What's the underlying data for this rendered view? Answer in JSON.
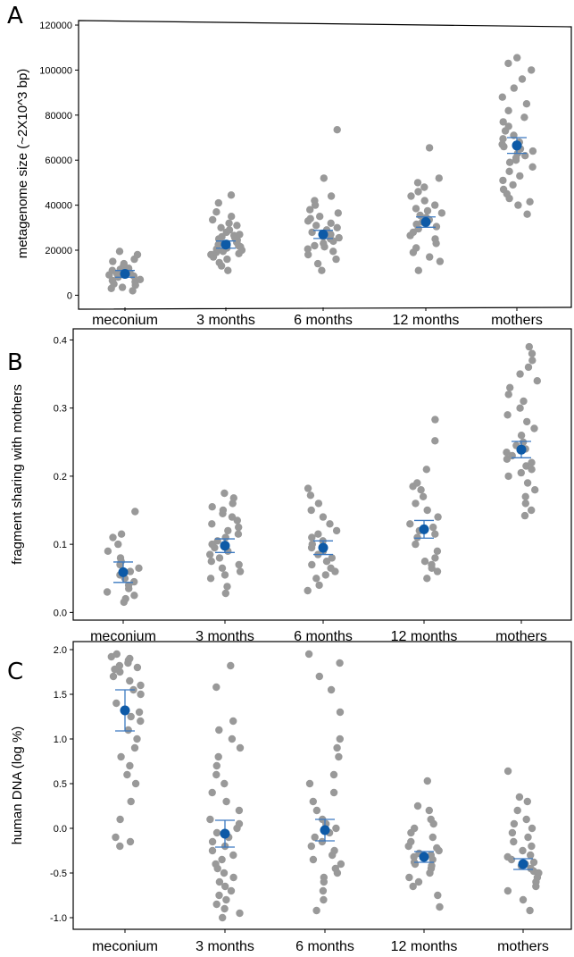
{
  "colors": {
    "point": "#999999",
    "mean": "#0d5aa7",
    "errorbar": "#3a78c0",
    "frame": "#000000"
  },
  "chart_data": [
    {
      "type": "scatter",
      "panel": "A",
      "ylabel": "metagenome size (~2X10^3 bp)",
      "categories": [
        "meconium",
        "3 months",
        "6 months",
        "12 months",
        "mothers"
      ],
      "yticks": [
        0,
        20000,
        40000,
        60000,
        80000,
        100000,
        120000
      ],
      "yticklabels": [
        "0",
        "20000",
        "40000",
        "60000",
        "80000",
        "100000",
        "120000"
      ],
      "ylim": [
        -5000,
        122000
      ],
      "grid": false,
      "means": [
        9500,
        22500,
        27000,
        32500,
        66500
      ],
      "err": [
        1500,
        1600,
        1800,
        2300,
        3500
      ],
      "points": [
        [
          2000,
          3000,
          3500,
          4500,
          5000,
          6000,
          6500,
          7000,
          8000,
          8500,
          9000,
          9500,
          10000,
          10500,
          11000,
          11500,
          12000,
          13000,
          14000,
          15000,
          16000,
          18000,
          19500
        ],
        [
          11000,
          13000,
          14500,
          16000,
          17000,
          18000,
          18500,
          19000,
          19500,
          20000,
          20500,
          21000,
          21500,
          22000,
          22500,
          23000,
          23500,
          24000,
          24500,
          25000,
          25500,
          26000,
          26500,
          27000,
          28000,
          29000,
          30000,
          31000,
          32000,
          33500,
          35000,
          37000,
          41000,
          44500
        ],
        [
          11000,
          14000,
          16000,
          18000,
          19500,
          20500,
          21500,
          22000,
          23000,
          24000,
          25000,
          25500,
          26000,
          27000,
          28000,
          29000,
          30000,
          31000,
          32000,
          33000,
          34000,
          35000,
          36500,
          38000,
          40000,
          42000,
          44000,
          52000,
          73500
        ],
        [
          11000,
          15000,
          17000,
          19000,
          21000,
          23000,
          25000,
          26500,
          28000,
          29500,
          30500,
          31500,
          32500,
          33500,
          34500,
          35500,
          36500,
          37500,
          38500,
          40000,
          42000,
          44000,
          46000,
          48000,
          50000,
          52000,
          65500
        ],
        [
          36000,
          40000,
          41500,
          43000,
          45000,
          47000,
          49000,
          51000,
          53000,
          55000,
          57000,
          59000,
          60000,
          61000,
          62000,
          63000,
          64000,
          65000,
          66000,
          67000,
          68000,
          69500,
          71000,
          73000,
          75000,
          77000,
          79000,
          82000,
          85000,
          88000,
          92000,
          96000,
          100000,
          103000,
          105500
        ]
      ]
    },
    {
      "type": "scatter",
      "panel": "B",
      "ylabel": "fragment sharing with mothers",
      "categories": [
        "meconium",
        "3 months",
        "6 months",
        "12 months",
        "mothers"
      ],
      "yticks": [
        0,
        0.1,
        0.2,
        0.3,
        0.4
      ],
      "yticklabels": [
        "0.0",
        "0.1",
        "0.2",
        "0.3",
        "0.4"
      ],
      "ylim": [
        -0.01,
        0.415
      ],
      "grid": false,
      "means": [
        0.059,
        0.098,
        0.095,
        0.122,
        0.239
      ],
      "err": [
        0.015,
        0.01,
        0.01,
        0.013,
        0.012
      ],
      "points": [
        [
          0.015,
          0.02,
          0.025,
          0.03,
          0.035,
          0.04,
          0.045,
          0.05,
          0.055,
          0.06,
          0.065,
          0.07,
          0.075,
          0.08,
          0.09,
          0.1,
          0.11,
          0.115,
          0.148
        ],
        [
          0.028,
          0.038,
          0.05,
          0.055,
          0.06,
          0.065,
          0.07,
          0.075,
          0.08,
          0.085,
          0.09,
          0.095,
          0.1,
          0.105,
          0.11,
          0.115,
          0.12,
          0.125,
          0.13,
          0.135,
          0.14,
          0.145,
          0.15,
          0.155,
          0.16,
          0.168,
          0.175
        ],
        [
          0.032,
          0.04,
          0.05,
          0.055,
          0.06,
          0.065,
          0.07,
          0.075,
          0.08,
          0.085,
          0.09,
          0.095,
          0.1,
          0.105,
          0.11,
          0.115,
          0.12,
          0.13,
          0.14,
          0.15,
          0.16,
          0.172,
          0.182
        ],
        [
          0.05,
          0.06,
          0.065,
          0.07,
          0.075,
          0.08,
          0.09,
          0.1,
          0.11,
          0.115,
          0.12,
          0.125,
          0.13,
          0.14,
          0.15,
          0.16,
          0.17,
          0.18,
          0.185,
          0.19,
          0.21,
          0.252,
          0.283
        ],
        [
          0.142,
          0.15,
          0.16,
          0.17,
          0.18,
          0.19,
          0.2,
          0.205,
          0.21,
          0.215,
          0.22,
          0.225,
          0.23,
          0.235,
          0.24,
          0.245,
          0.25,
          0.26,
          0.27,
          0.28,
          0.29,
          0.3,
          0.31,
          0.32,
          0.33,
          0.34,
          0.35,
          0.36,
          0.37,
          0.38,
          0.39
        ]
      ]
    },
    {
      "type": "scatter",
      "panel": "C",
      "ylabel": "human DNA (log %)",
      "categories": [
        "meconium",
        "3 months",
        "6 months",
        "12 months",
        "mothers"
      ],
      "yticks": [
        -1,
        -0.5,
        0,
        0.5,
        1,
        1.5,
        2
      ],
      "yticklabels": [
        "-1.0",
        "-0.5",
        "0.0",
        "0.5",
        "1.0",
        "1.5",
        "2.0"
      ],
      "ylim": [
        -1.12,
        2.08
      ],
      "grid": false,
      "means": [
        1.32,
        -0.06,
        -0.02,
        -0.32,
        -0.4
      ],
      "err": [
        0.23,
        0.15,
        0.12,
        0.06,
        0.06
      ],
      "points": [
        [
          -0.2,
          -0.15,
          -0.1,
          0.1,
          0.3,
          0.5,
          0.6,
          0.7,
          0.8,
          0.9,
          1.0,
          1.1,
          1.2,
          1.25,
          1.3,
          1.4,
          1.5,
          1.55,
          1.6,
          1.65,
          1.7,
          1.75,
          1.78,
          1.8,
          1.82,
          1.85,
          1.88,
          1.9,
          1.92,
          1.95
        ],
        [
          -1.0,
          -0.95,
          -0.9,
          -0.85,
          -0.8,
          -0.75,
          -0.7,
          -0.65,
          -0.6,
          -0.55,
          -0.5,
          -0.45,
          -0.4,
          -0.35,
          -0.3,
          -0.25,
          -0.2,
          -0.15,
          -0.1,
          -0.05,
          0.0,
          0.05,
          0.1,
          0.2,
          0.3,
          0.4,
          0.5,
          0.6,
          0.7,
          0.8,
          0.9,
          1.0,
          1.1,
          1.2,
          1.58,
          1.82
        ],
        [
          -0.92,
          -0.8,
          -0.7,
          -0.6,
          -0.55,
          -0.5,
          -0.45,
          -0.4,
          -0.35,
          -0.3,
          -0.25,
          -0.2,
          -0.15,
          -0.1,
          -0.05,
          0.0,
          0.05,
          0.1,
          0.2,
          0.3,
          0.4,
          0.5,
          0.6,
          0.8,
          0.9,
          1.0,
          1.3,
          1.55,
          1.7,
          1.85,
          1.95
        ],
        [
          -0.88,
          -0.75,
          -0.65,
          -0.6,
          -0.55,
          -0.5,
          -0.45,
          -0.42,
          -0.4,
          -0.38,
          -0.35,
          -0.32,
          -0.3,
          -0.28,
          -0.25,
          -0.22,
          -0.2,
          -0.15,
          -0.1,
          -0.05,
          0.0,
          0.05,
          0.1,
          0.2,
          0.25,
          0.53
        ],
        [
          -0.92,
          -0.8,
          -0.7,
          -0.65,
          -0.6,
          -0.55,
          -0.5,
          -0.48,
          -0.45,
          -0.42,
          -0.4,
          -0.38,
          -0.35,
          -0.32,
          -0.3,
          -0.25,
          -0.2,
          -0.15,
          -0.1,
          -0.05,
          0.0,
          0.05,
          0.1,
          0.2,
          0.3,
          0.35,
          0.64
        ]
      ]
    }
  ]
}
